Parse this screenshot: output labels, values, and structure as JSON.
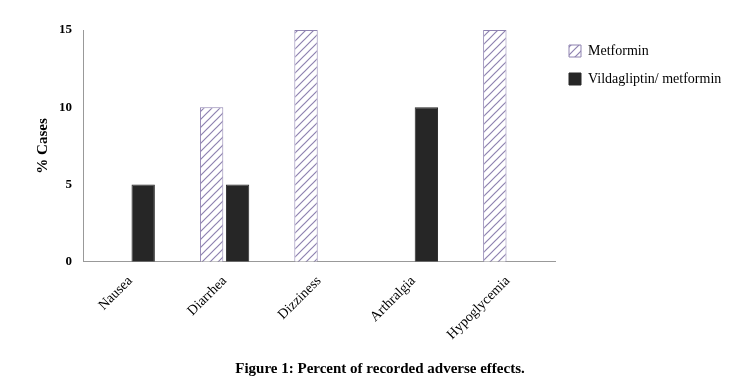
{
  "chart_data": {
    "type": "bar",
    "title": "Figure 1: Percent of recorded adverse effects.",
    "y_label": "% Cases",
    "categories": [
      "Nausea",
      "Diarrhea",
      "Dizziness",
      "Arthralgia",
      "Hypoglycemia"
    ],
    "series": [
      {
        "name": "Metformin",
        "color": "#8e82b0",
        "values": [
          0,
          10,
          15,
          0,
          15
        ]
      },
      {
        "name": "Vildagliptin/ metformin",
        "color": "#262626",
        "values": [
          5,
          5,
          0,
          10,
          0
        ]
      }
    ],
    "ylim": [
      0,
      15
    ],
    "yticks": [
      0,
      5,
      10,
      15
    ],
    "grid": false,
    "legend": "right"
  }
}
